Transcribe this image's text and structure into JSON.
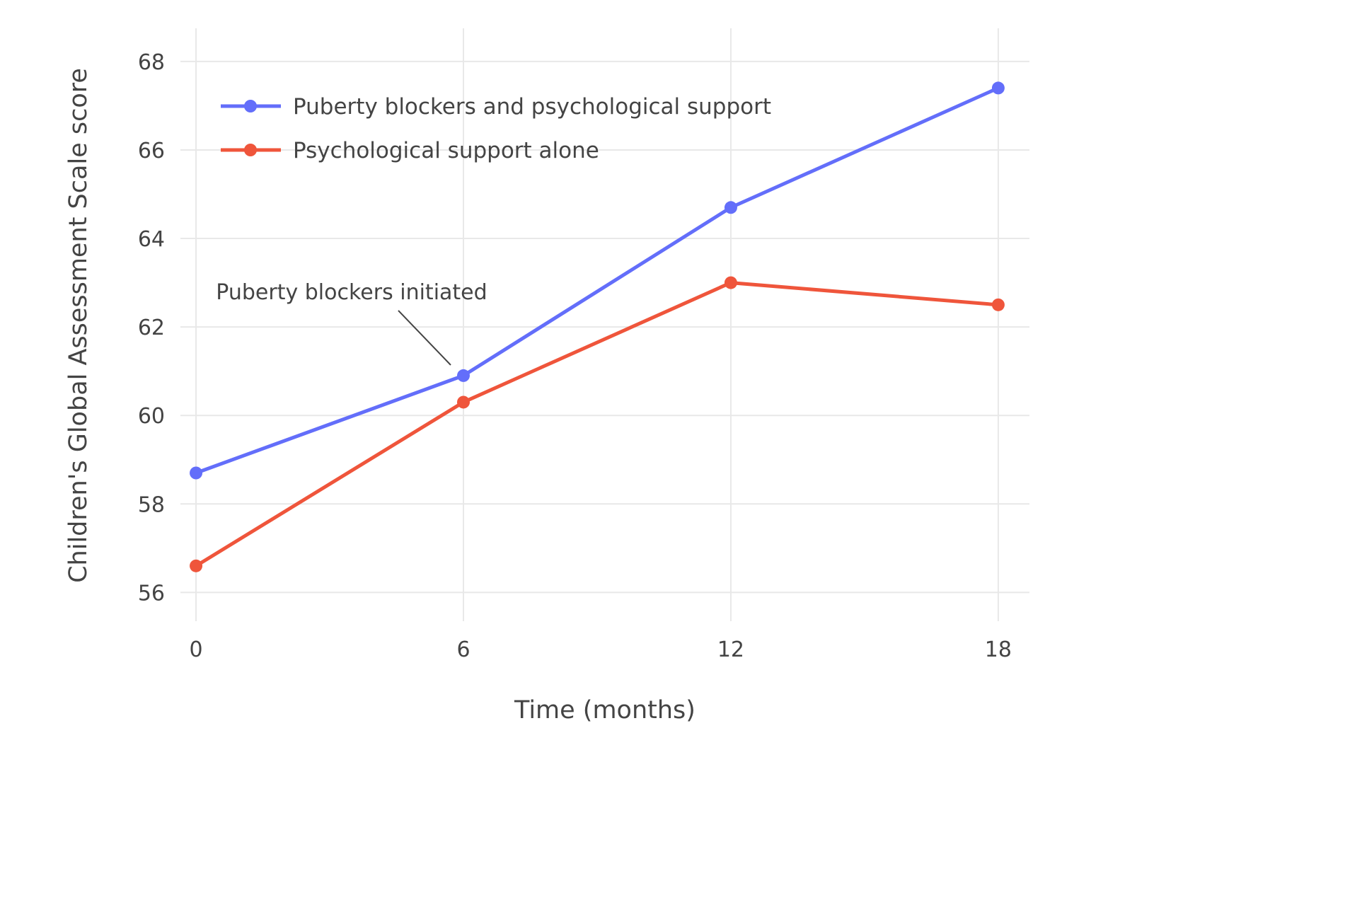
{
  "chart_data": {
    "type": "line",
    "title": "",
    "xlabel": "Time (months)",
    "ylabel": "Children's Global Assessment Scale score",
    "x": [
      0,
      6,
      12,
      18
    ],
    "xticks": [
      0,
      6,
      12,
      18
    ],
    "yticks": [
      56,
      58,
      60,
      62,
      64,
      66,
      68
    ],
    "xlim": [
      -0.35,
      18.7
    ],
    "ylim": [
      55.35,
      68.75
    ],
    "grid": true,
    "legend_position": "top-left-inside",
    "series": [
      {
        "name": "Puberty blockers and psychological support",
        "color": "#636EFA",
        "values": [
          58.7,
          60.9,
          64.7,
          67.4
        ]
      },
      {
        "name": "Psychological support alone",
        "color": "#EF553B",
        "values": [
          56.6,
          60.3,
          63.0,
          62.5
        ]
      }
    ],
    "annotation": {
      "text": "Puberty blockers initiated",
      "target_x": 6,
      "target_y": 60.9
    }
  },
  "style": {
    "background": "#ffffff",
    "grid_color": "#e8e8e8",
    "text_color": "#444444"
  }
}
